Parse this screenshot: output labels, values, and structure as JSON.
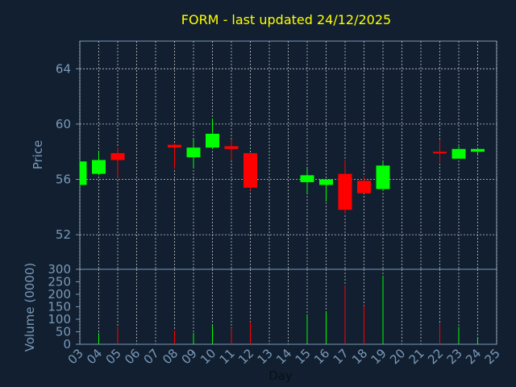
{
  "chart_data": {
    "type": "candlestick",
    "title": "FORM - last updated 24/12/2025",
    "colors": {
      "background": "#111f30",
      "axis": "#7a9ab8",
      "grid": "#c8c8c8",
      "up": "#00ff00",
      "down": "#ff0000",
      "title": "#ffff00"
    },
    "price_panel": {
      "ylabel": "Price",
      "ylim": [
        49.5,
        66
      ],
      "yticks": [
        52,
        56,
        60,
        64
      ]
    },
    "volume_panel": {
      "ylabel": "Volume (0000)",
      "ylim": [
        0,
        300
      ],
      "yticks": [
        0,
        50,
        100,
        150,
        200,
        250,
        300
      ]
    },
    "xlabel": "Day",
    "x_tick_labels": [
      "03",
      "04",
      "05",
      "06",
      "07",
      "08",
      "09",
      "10",
      "11",
      "12",
      "13",
      "14",
      "15",
      "16",
      "17",
      "18",
      "19",
      "20",
      "21",
      "22",
      "23",
      "24",
      "25"
    ],
    "candles": [
      {
        "day": "03",
        "open": 55.6,
        "high": 57.4,
        "low": 55.5,
        "close": 57.3,
        "volume": 0
      },
      {
        "day": "04",
        "open": 56.4,
        "high": 58.0,
        "low": 56.3,
        "close": 57.4,
        "volume": 45
      },
      {
        "day": "05",
        "open": 57.9,
        "high": 58.3,
        "low": 56.1,
        "close": 57.4,
        "volume": 70
      },
      {
        "day": "08",
        "open": 58.5,
        "high": 58.6,
        "low": 56.8,
        "close": 58.3,
        "volume": 55
      },
      {
        "day": "09",
        "open": 57.6,
        "high": 58.9,
        "low": 56.8,
        "close": 58.3,
        "volume": 45
      },
      {
        "day": "10",
        "open": 58.3,
        "high": 60.4,
        "low": 58.2,
        "close": 59.3,
        "volume": 75
      },
      {
        "day": "11",
        "open": 58.4,
        "high": 58.9,
        "low": 57.4,
        "close": 58.2,
        "volume": 65
      },
      {
        "day": "12",
        "open": 57.9,
        "high": 57.9,
        "low": 55.2,
        "close": 55.4,
        "volume": 90
      },
      {
        "day": "15",
        "open": 55.8,
        "high": 56.8,
        "low": 55.0,
        "close": 56.3,
        "volume": 120
      },
      {
        "day": "16",
        "open": 55.6,
        "high": 56.0,
        "low": 54.4,
        "close": 56.0,
        "volume": 130
      },
      {
        "day": "17",
        "open": 56.4,
        "high": 57.4,
        "low": 53.5,
        "close": 53.8,
        "volume": 235
      },
      {
        "day": "18",
        "open": 55.9,
        "high": 56.2,
        "low": 55.0,
        "close": 55.0,
        "volume": 155
      },
      {
        "day": "19",
        "open": 55.3,
        "high": 57.3,
        "low": 55.2,
        "close": 57.0,
        "volume": 275
      },
      {
        "day": "22",
        "open": 58.0,
        "high": 58.9,
        "low": 57.2,
        "close": 57.9,
        "volume": 85
      },
      {
        "day": "23",
        "open": 57.5,
        "high": 58.4,
        "low": 57.5,
        "close": 58.2,
        "volume": 70
      },
      {
        "day": "24",
        "open": 58.0,
        "high": 58.3,
        "low": 57.8,
        "close": 58.2,
        "volume": 25
      }
    ]
  }
}
